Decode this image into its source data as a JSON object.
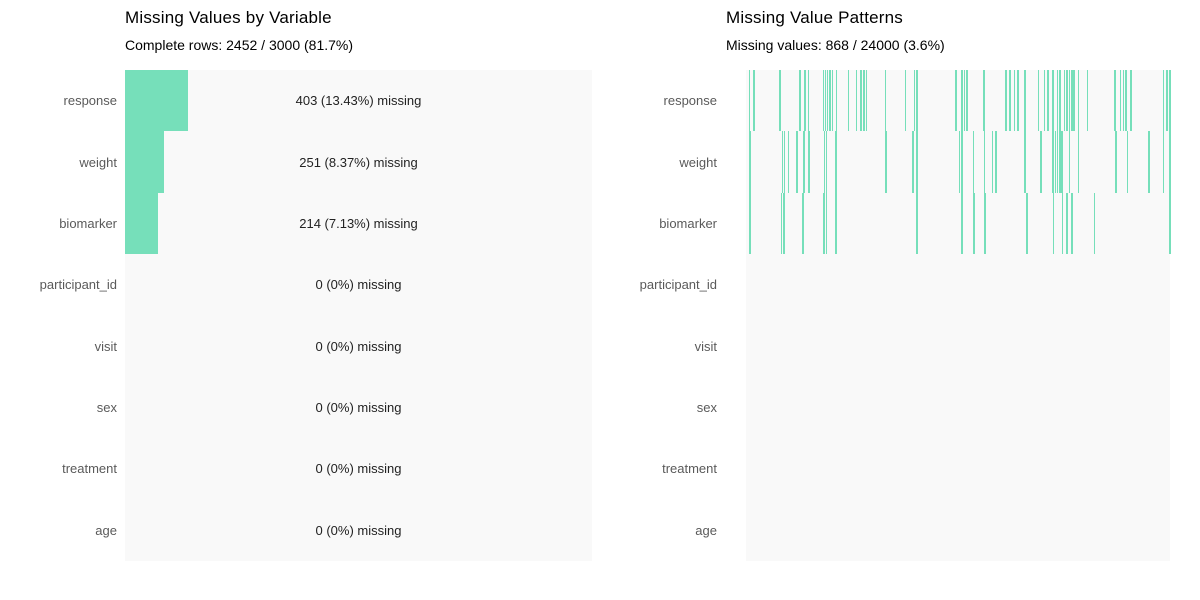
{
  "colors": {
    "accent": "#76dfba",
    "panel_background": "#f9f9f9",
    "axis_label_gray": "#5a5a5a",
    "title_black": "#000000"
  },
  "chart_data": [
    {
      "type": "bar",
      "orientation": "horizontal",
      "title": "Missing Values by Variable",
      "subtitle": "Complete rows: 2452 / 3000 (81.7%)",
      "categories": [
        "response",
        "weight",
        "biomarker",
        "participant_id",
        "visit",
        "sex",
        "treatment",
        "age"
      ],
      "values_pct_missing": [
        13.43,
        8.37,
        7.13,
        0,
        0,
        0,
        0,
        0
      ],
      "values_count_missing": [
        403,
        251,
        214,
        0,
        0,
        0,
        0,
        0
      ],
      "total_rows": 3000,
      "complete_rows": 2452,
      "bar_labels": [
        "403 (13.43%) missing",
        "251 (8.37%) missing",
        "214 (7.13%) missing",
        "0 (0%) missing",
        "0 (0%) missing",
        "0 (0%) missing",
        "0 (0%) missing",
        "0 (0%) missing"
      ],
      "xlim": [
        0,
        100
      ],
      "grid": false,
      "legend": false
    },
    {
      "type": "heatmap",
      "title": "Missing Value Patterns",
      "subtitle": "Missing values: 868 / 24000 (3.6%)",
      "categories": [
        "response",
        "weight",
        "biomarker",
        "participant_id",
        "visit",
        "sex",
        "treatment",
        "age"
      ],
      "total_cells": 24000,
      "missing_cells": 868,
      "missing_pct": 3.6,
      "grid": false,
      "legend": false,
      "missing_positions_pct": {
        "response": [
          0.6,
          1.7,
          7.8,
          12.5,
          13.7,
          14.6,
          18.1,
          18.6,
          19.1,
          19.6,
          20.2,
          21.2,
          24.0,
          25.9,
          26.9,
          27.6,
          28.2,
          32.7,
          37.4,
          39.6,
          40.2,
          49.4,
          50.8,
          51.3,
          52.0,
          56.0,
          61.2,
          62.1,
          63.1,
          64.0,
          65.6,
          68.8,
          70.2,
          71.1,
          72.2,
          73.3,
          73.9,
          74.9,
          75.5,
          76.1,
          76.7,
          77.2,
          78.2,
          80.4,
          86.8,
          88.1,
          88.9,
          89.4,
          90.6,
          98.3,
          99.1,
          99.8
        ],
        "weight": [
          0.8,
          8.4,
          8.9,
          9.8,
          11.8,
          13.5,
          14.7,
          18.3,
          18.8,
          21.0,
          32.9,
          39.2,
          40.2,
          50.2,
          50.8,
          53.5,
          56.1,
          58.0,
          58.8,
          65.6,
          69.4,
          72.2,
          72.8,
          73.3,
          73.9,
          74.4,
          76.1,
          78.2,
          87.1,
          89.8,
          94.9,
          98.3,
          99.8
        ],
        "biomarker": [
          0.8,
          8.2,
          8.8,
          13.3,
          18.2,
          18.8,
          21.0,
          40.2,
          50.8,
          53.6,
          56.2,
          66.1,
          72.4,
          74.5,
          75.5,
          76.7,
          82.0,
          99.8
        ],
        "participant_id": [],
        "visit": [],
        "sex": [],
        "treatment": [],
        "age": []
      }
    }
  ]
}
